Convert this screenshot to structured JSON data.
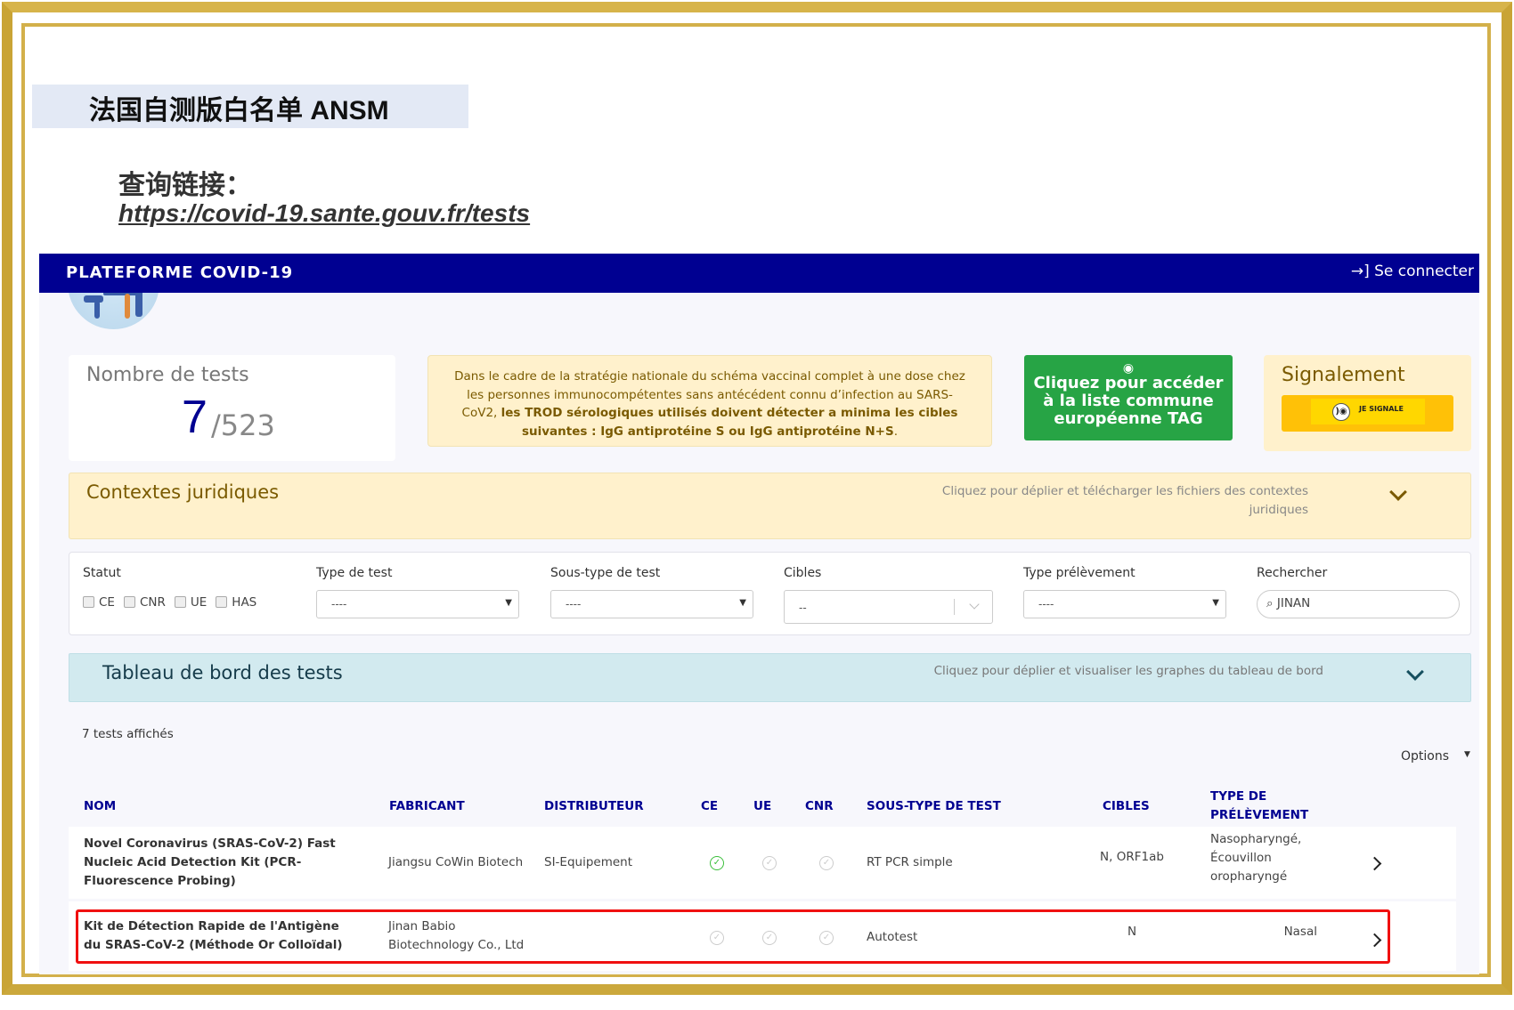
{
  "slide": {
    "title": "法国自测版白名单  ANSM",
    "query_label": "查询链接：",
    "query_url": "https://covid-19.sante.gouv.fr/tests",
    "frame_color": "#cfac3e",
    "highlight_color": "#f01010"
  },
  "navbar": {
    "brand": "PLATEFORME COVID-19",
    "login": "Se connecter",
    "login_icon": "sign-in-icon",
    "color": "#000091"
  },
  "stats": {
    "label": "Nombre de tests",
    "shown": "7",
    "total": "/523"
  },
  "notice": {
    "text_regular": "Dans le cadre de la stratégie nationale du schéma vaccinal complet à une dose chez les personnes immunocompétentes sans antécédent connu d’infection au SARS-CoV2, ",
    "text_bold": "les TROD sérologiques utilisés doivent détecter a minima les cibles suivantes : IgG antiprotéine S ou IgG antiprotéine N+S",
    "text_end": "."
  },
  "tag_button": {
    "icon": "eye-icon",
    "label": "Cliquez pour accéder à la liste commune européenne TAG",
    "color": "#27a445"
  },
  "signalement": {
    "title": "Signalement",
    "button_label": "JE SIGNALE"
  },
  "contextes": {
    "title": "Contextes juridiques",
    "hint": "Cliquez pour déplier et télécharger les fichiers des contextes juridiques"
  },
  "filters": {
    "statut_label": "Statut",
    "statut_options": [
      "CE",
      "CNR",
      "UE",
      "HAS"
    ],
    "type_test": {
      "label": "Type de test",
      "value": "----"
    },
    "sous_type": {
      "label": "Sous-type de test",
      "value": "----"
    },
    "cibles": {
      "label": "Cibles",
      "value": "--"
    },
    "prelevement": {
      "label": "Type prélèvement",
      "value": "----"
    },
    "search": {
      "label": "Rechercher",
      "value": "JINAN"
    }
  },
  "dashboard": {
    "title": "Tableau de bord des tests",
    "hint": "Cliquez pour déplier et visualiser les graphes du tableau de bord"
  },
  "results": {
    "count": "7 tests affichés",
    "options": "Options"
  },
  "table": {
    "headers": {
      "nom": "NOM",
      "fabricant": "FABRICANT",
      "distributeur": "DISTRIBUTEUR",
      "ce": "CE",
      "ue": "UE",
      "cnr": "CNR",
      "sous_type": "SOUS-TYPE DE TEST",
      "cibles": "CIBLES",
      "prelevement": "TYPE DE PRÉLÈVEMENT"
    },
    "rows": [
      {
        "nom": "Novel Coronavirus (SRAS-CoV-2) Fast Nucleic Acid Detection Kit (PCR-Fluorescence Probing)",
        "fabricant": "Jiangsu CoWin Biotech",
        "distributeur": "SI-Equipement",
        "ce": true,
        "ue": false,
        "cnr": false,
        "sous_type": "RT PCR simple",
        "cibles": "N, ORF1ab",
        "prelevement": "Nasopharyngé, Écouvillon oropharyngé"
      },
      {
        "nom": "Kit de Détection Rapide de l'Antigène du SRAS-CoV-2 (Méthode Or Colloïdal)",
        "fabricant": "Jinan Babio Biotechnology Co., Ltd",
        "distributeur": "",
        "ce": false,
        "ue": false,
        "cnr": false,
        "sous_type": "Autotest",
        "cibles": "N",
        "prelevement": "Nasal",
        "highlighted": true
      }
    ]
  }
}
